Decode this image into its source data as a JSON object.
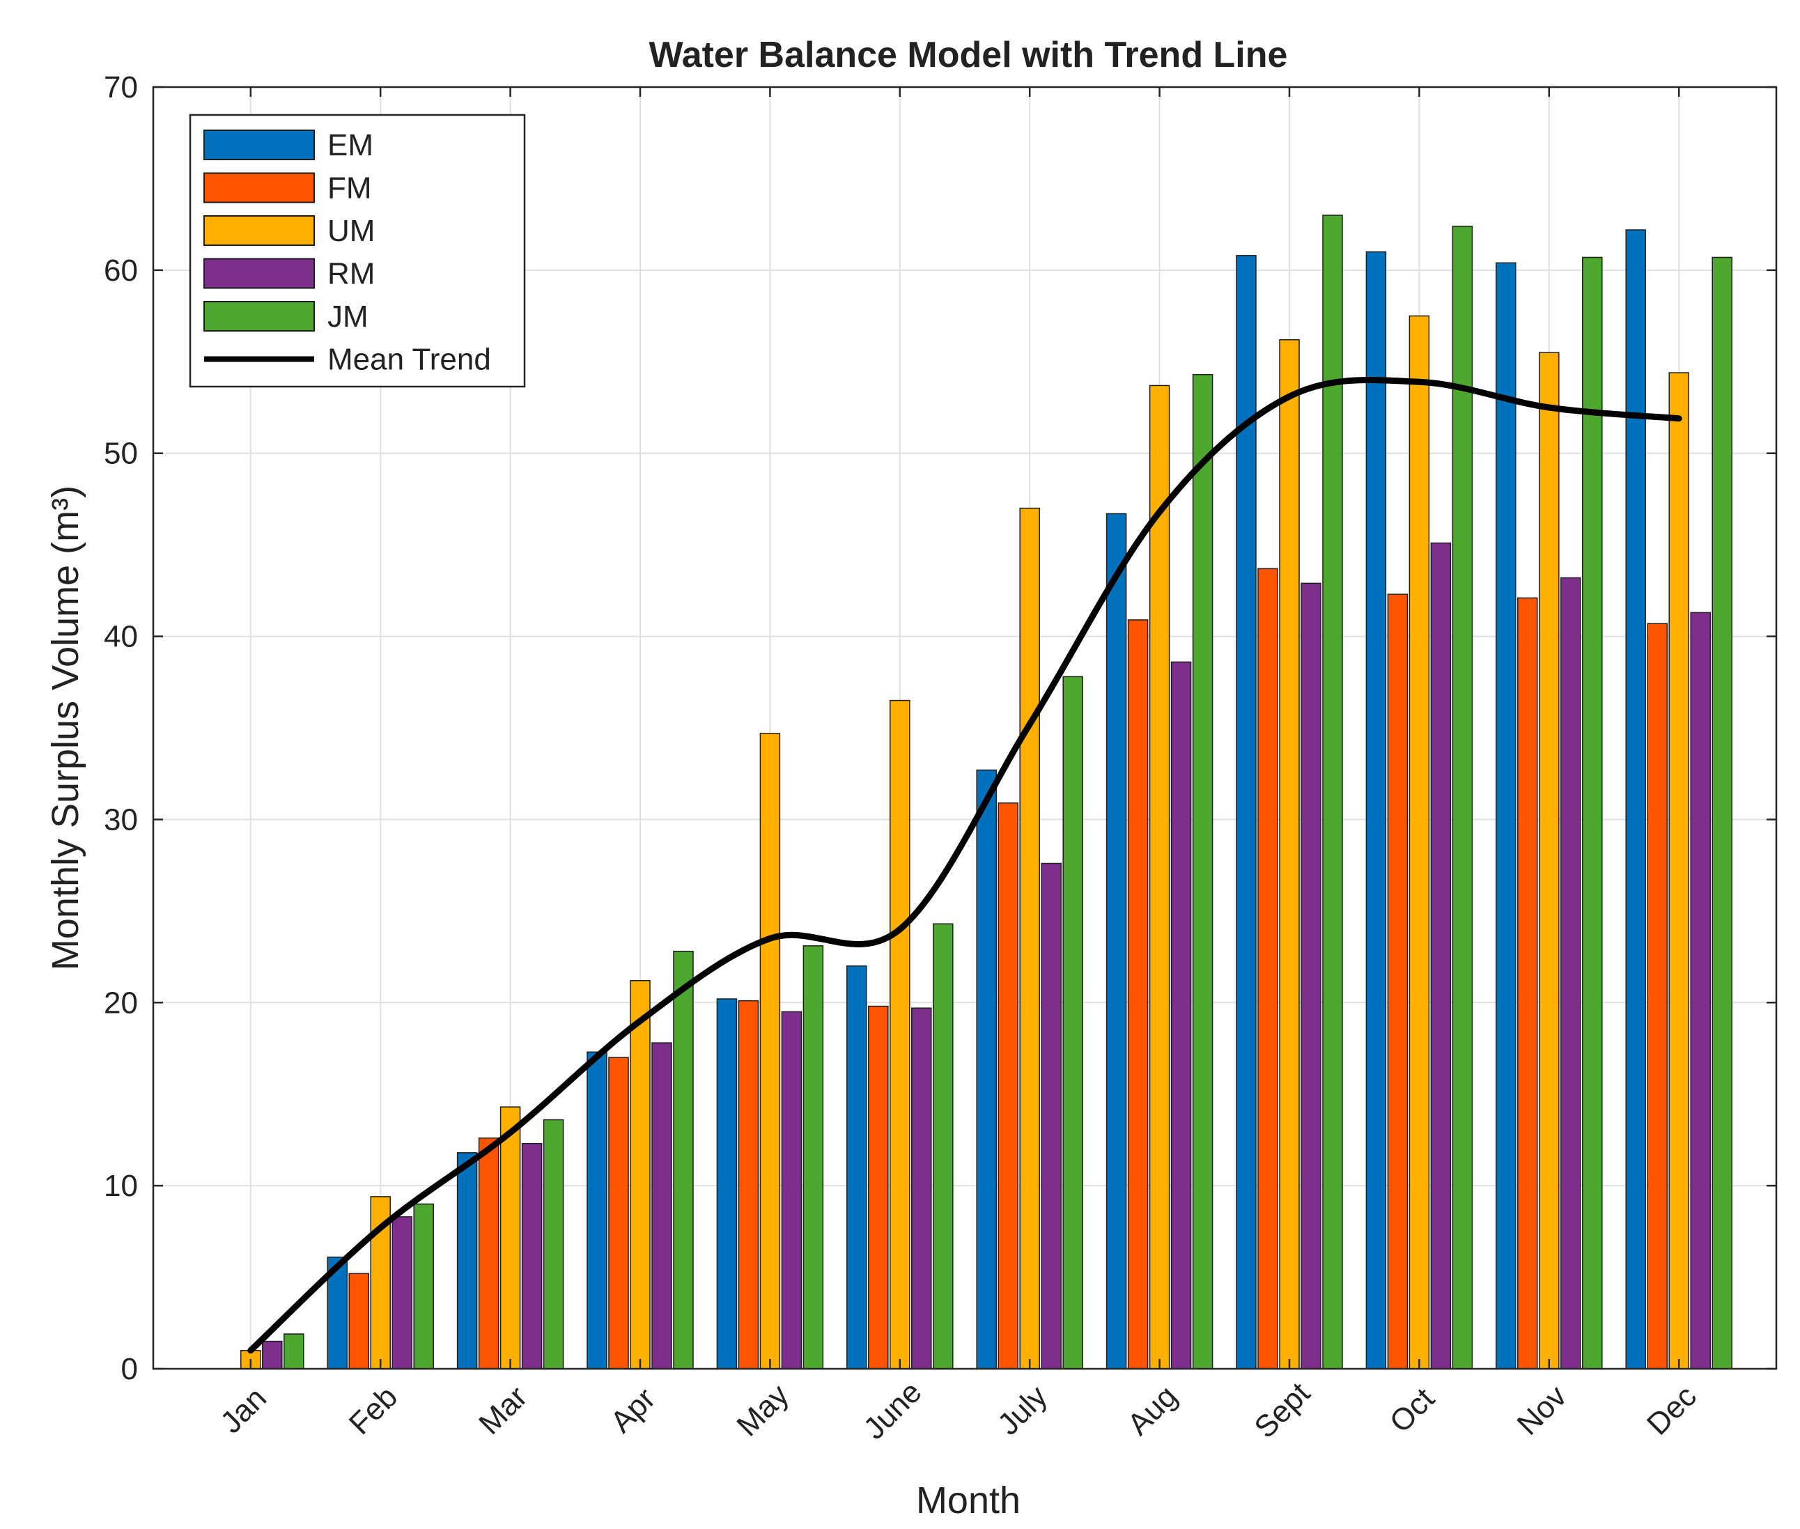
{
  "chart_data": {
    "type": "bar",
    "title": "Water Balance Model with Trend Line",
    "xlabel": "Month",
    "ylabel": "Monthly Surplus Volume (m³)",
    "ylim": [
      0,
      70
    ],
    "yticks": [
      "0",
      "10",
      "20",
      "30",
      "40",
      "50",
      "60",
      "70"
    ],
    "grid": true,
    "legend_position": "top-left",
    "categories": [
      "Jan",
      "Feb",
      "Mar",
      "Apr",
      "May",
      "June",
      "July",
      "Aug",
      "Sept",
      "Oct",
      "Nov",
      "Dec"
    ],
    "series": [
      {
        "name": "EM",
        "color": "#0072BD",
        "values": [
          0,
          6.1,
          11.8,
          17.3,
          20.2,
          22.0,
          32.7,
          46.7,
          60.8,
          61.0,
          60.4,
          62.2
        ]
      },
      {
        "name": "FM",
        "color": "#FF5500",
        "values": [
          0,
          5.2,
          12.6,
          17.0,
          20.1,
          19.8,
          30.9,
          40.9,
          43.7,
          42.3,
          42.1,
          40.7
        ]
      },
      {
        "name": "UM",
        "color": "#FFB000",
        "values": [
          1.0,
          9.4,
          14.3,
          21.2,
          34.7,
          36.5,
          47.0,
          53.7,
          56.2,
          57.5,
          55.5,
          54.4
        ]
      },
      {
        "name": "RM",
        "color": "#7E2F8E",
        "values": [
          1.5,
          8.3,
          12.3,
          17.8,
          19.5,
          19.7,
          27.6,
          38.6,
          42.9,
          45.1,
          43.2,
          41.3
        ]
      },
      {
        "name": "JM",
        "color": "#4EA72E",
        "values": [
          1.9,
          9.0,
          13.6,
          22.8,
          23.1,
          24.3,
          37.8,
          54.3,
          63.0,
          62.4,
          60.7,
          60.7
        ]
      }
    ],
    "trend": {
      "name": "Mean Trend",
      "color": "#000000",
      "values": [
        1.0,
        7.7,
        12.9,
        19.0,
        23.5,
        24.0,
        35.2,
        46.8,
        53.1,
        53.9,
        52.5,
        51.9
      ]
    }
  }
}
